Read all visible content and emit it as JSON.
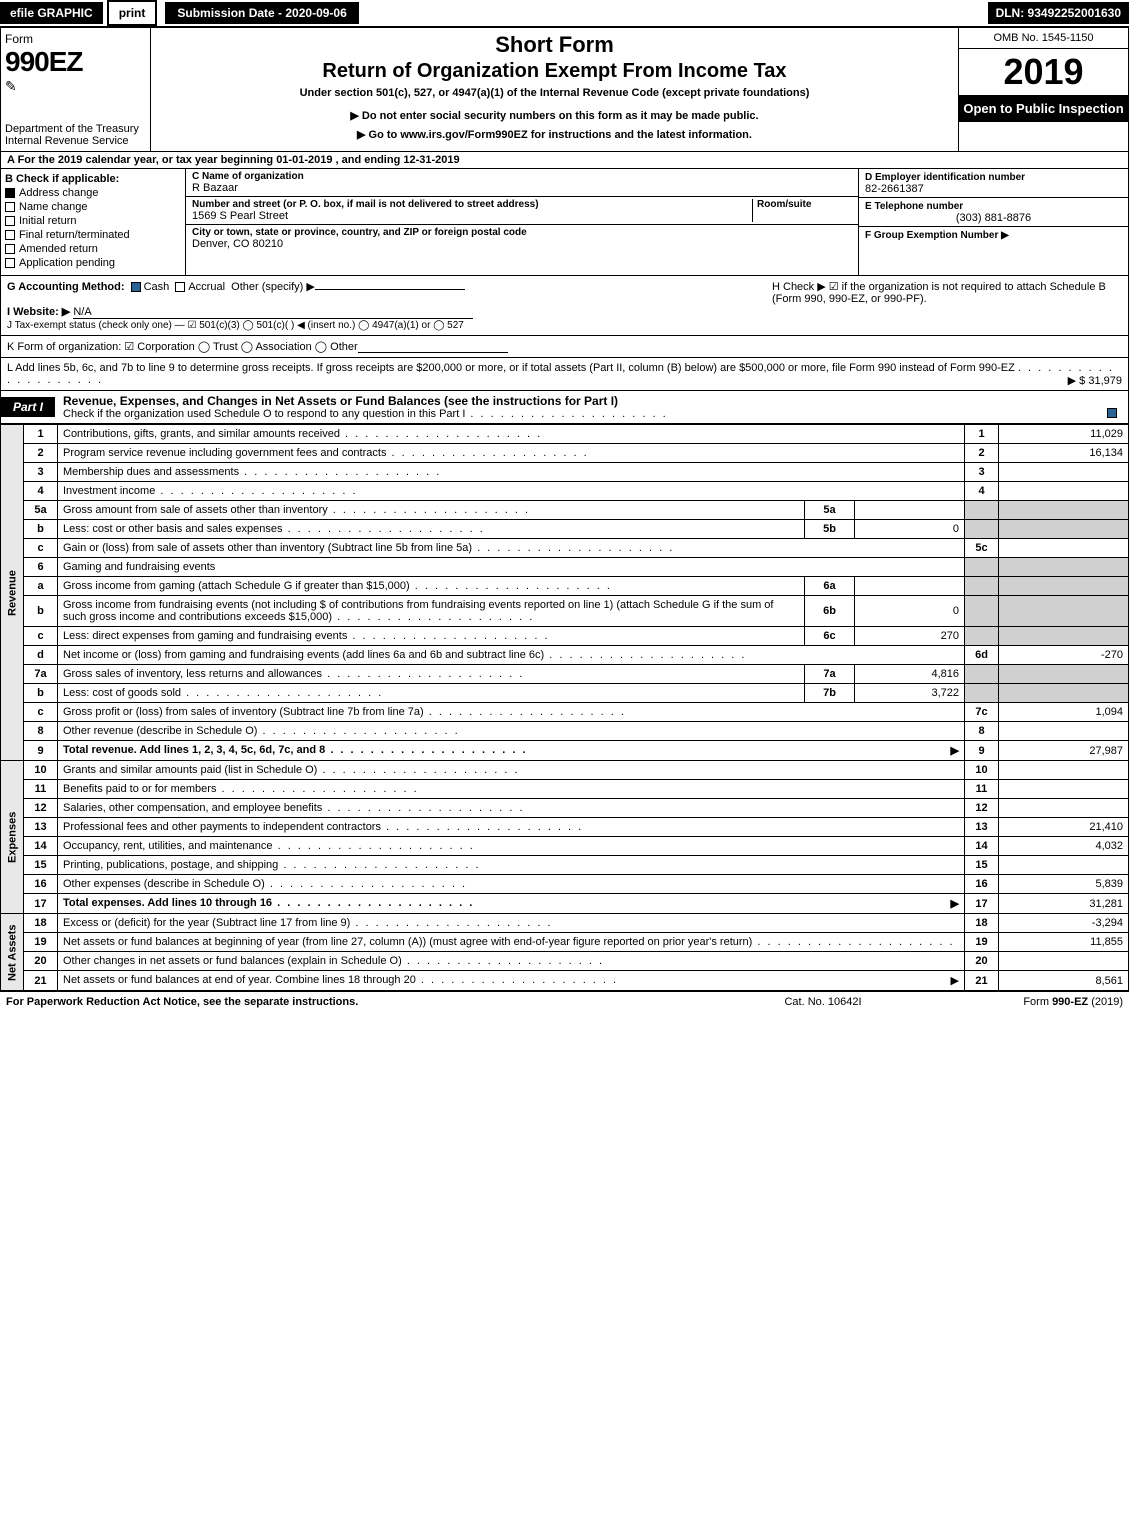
{
  "topbar": {
    "efile": "efile GRAPHIC",
    "print": "print",
    "subdate_label": "Submission Date - 2020-09-06",
    "dln": "DLN: 93492252001630"
  },
  "header": {
    "form_word": "Form",
    "form_number": "990EZ",
    "dept": "Department of the Treasury",
    "irs": "Internal Revenue Service",
    "title1": "Short Form",
    "title2": "Return of Organization Exempt From Income Tax",
    "sub": "Under section 501(c), 527, or 4947(a)(1) of the Internal Revenue Code (except private foundations)",
    "sub2": "▶ Do not enter social security numbers on this form as it may be made public.",
    "sub3": "▶ Go to www.irs.gov/Form990EZ for instructions and the latest information.",
    "omb": "OMB No. 1545-1150",
    "year": "2019",
    "open": "Open to Public Inspection"
  },
  "period": "A For the 2019 calendar year, or tax year beginning 01-01-2019 , and ending 12-31-2019",
  "boxB": {
    "label": "B Check if applicable:",
    "items": [
      {
        "label": "Address change",
        "checked": true
      },
      {
        "label": "Name change",
        "checked": false
      },
      {
        "label": "Initial return",
        "checked": false
      },
      {
        "label": "Final return/terminated",
        "checked": false
      },
      {
        "label": "Amended return",
        "checked": false
      },
      {
        "label": "Application pending",
        "checked": false
      }
    ]
  },
  "boxC": {
    "name_label": "C Name of organization",
    "name": "R Bazaar",
    "addr_label": "Number and street (or P. O. box, if mail is not delivered to street address)",
    "room_label": "Room/suite",
    "addr": "1569 S Pearl Street",
    "city_label": "City or town, state or province, country, and ZIP or foreign postal code",
    "city": "Denver, CO  80210"
  },
  "boxD": {
    "label": "D Employer identification number",
    "value": "82-2661387"
  },
  "boxE": {
    "label": "E Telephone number",
    "value": "(303) 881-8876"
  },
  "boxF": {
    "label": "F Group Exemption Number ▶",
    "value": ""
  },
  "lineG": {
    "label": "G Accounting Method:",
    "cash": "Cash",
    "accrual": "Accrual",
    "other": "Other (specify) ▶"
  },
  "lineH": {
    "text": "H Check ▶ ☑ if the organization is not required to attach Schedule B (Form 990, 990-EZ, or 990-PF)."
  },
  "lineI": {
    "label": "I Website: ▶",
    "value": "N/A"
  },
  "lineJ": {
    "label": "J Tax-exempt status (check only one) — ☑ 501(c)(3)  ◯ 501(c)( ) ◀ (insert no.)  ◯ 4947(a)(1) or  ◯ 527"
  },
  "lineK": {
    "label": "K Form of organization:  ☑ Corporation  ◯ Trust  ◯ Association  ◯ Other"
  },
  "lineL": {
    "text": "L Add lines 5b, 6c, and 7b to line 9 to determine gross receipts. If gross receipts are $200,000 or more, or if total assets (Part II, column (B) below) are $500,000 or more, file Form 990 instead of Form 990-EZ",
    "amount": "▶ $ 31,979"
  },
  "part1": {
    "label": "Part I",
    "title": "Revenue, Expenses, and Changes in Net Assets or Fund Balances (see the instructions for Part I)",
    "checknote": "Check if the organization used Schedule O to respond to any question in this Part I"
  },
  "sections": {
    "revenue": "Revenue",
    "expenses": "Expenses",
    "netassets": "Net Assets"
  },
  "rows": [
    {
      "n": "1",
      "desc": "Contributions, gifts, grants, and similar amounts received",
      "ref": "1",
      "amt": "11,029"
    },
    {
      "n": "2",
      "desc": "Program service revenue including government fees and contracts",
      "ref": "2",
      "amt": "16,134"
    },
    {
      "n": "3",
      "desc": "Membership dues and assessments",
      "ref": "3",
      "amt": ""
    },
    {
      "n": "4",
      "desc": "Investment income",
      "ref": "4",
      "amt": ""
    },
    {
      "n": "5a",
      "desc": "Gross amount from sale of assets other than inventory",
      "inner_ref": "5a",
      "inner_amt": ""
    },
    {
      "n": "b",
      "desc": "Less: cost or other basis and sales expenses",
      "inner_ref": "5b",
      "inner_amt": "0"
    },
    {
      "n": "c",
      "desc": "Gain or (loss) from sale of assets other than inventory (Subtract line 5b from line 5a)",
      "ref": "5c",
      "amt": ""
    },
    {
      "n": "6",
      "desc": "Gaming and fundraising events"
    },
    {
      "n": "a",
      "desc": "Gross income from gaming (attach Schedule G if greater than $15,000)",
      "inner_ref": "6a",
      "inner_amt": ""
    },
    {
      "n": "b",
      "desc": "Gross income from fundraising events (not including $                of contributions from fundraising events reported on line 1) (attach Schedule G if the sum of such gross income and contributions exceeds $15,000)",
      "inner_ref": "6b",
      "inner_amt": "0"
    },
    {
      "n": "c",
      "desc": "Less: direct expenses from gaming and fundraising events",
      "inner_ref": "6c",
      "inner_amt": "270"
    },
    {
      "n": "d",
      "desc": "Net income or (loss) from gaming and fundraising events (add lines 6a and 6b and subtract line 6c)",
      "ref": "6d",
      "amt": "-270"
    },
    {
      "n": "7a",
      "desc": "Gross sales of inventory, less returns and allowances",
      "inner_ref": "7a",
      "inner_amt": "4,816"
    },
    {
      "n": "b",
      "desc": "Less: cost of goods sold",
      "inner_ref": "7b",
      "inner_amt": "3,722"
    },
    {
      "n": "c",
      "desc": "Gross profit or (loss) from sales of inventory (Subtract line 7b from line 7a)",
      "ref": "7c",
      "amt": "1,094"
    },
    {
      "n": "8",
      "desc": "Other revenue (describe in Schedule O)",
      "ref": "8",
      "amt": ""
    },
    {
      "n": "9",
      "desc": "Total revenue. Add lines 1, 2, 3, 4, 5c, 6d, 7c, and 8",
      "ref": "9",
      "amt": "27,987",
      "bold": true,
      "arrow": true
    }
  ],
  "exp_rows": [
    {
      "n": "10",
      "desc": "Grants and similar amounts paid (list in Schedule O)",
      "ref": "10",
      "amt": ""
    },
    {
      "n": "11",
      "desc": "Benefits paid to or for members",
      "ref": "11",
      "amt": ""
    },
    {
      "n": "12",
      "desc": "Salaries, other compensation, and employee benefits",
      "ref": "12",
      "amt": ""
    },
    {
      "n": "13",
      "desc": "Professional fees and other payments to independent contractors",
      "ref": "13",
      "amt": "21,410"
    },
    {
      "n": "14",
      "desc": "Occupancy, rent, utilities, and maintenance",
      "ref": "14",
      "amt": "4,032"
    },
    {
      "n": "15",
      "desc": "Printing, publications, postage, and shipping",
      "ref": "15",
      "amt": ""
    },
    {
      "n": "16",
      "desc": "Other expenses (describe in Schedule O)",
      "ref": "16",
      "amt": "5,839"
    },
    {
      "n": "17",
      "desc": "Total expenses. Add lines 10 through 16",
      "ref": "17",
      "amt": "31,281",
      "bold": true,
      "arrow": true
    }
  ],
  "na_rows": [
    {
      "n": "18",
      "desc": "Excess or (deficit) for the year (Subtract line 17 from line 9)",
      "ref": "18",
      "amt": "-3,294"
    },
    {
      "n": "19",
      "desc": "Net assets or fund balances at beginning of year (from line 27, column (A)) (must agree with end-of-year figure reported on prior year's return)",
      "ref": "19",
      "amt": "11,855"
    },
    {
      "n": "20",
      "desc": "Other changes in net assets or fund balances (explain in Schedule O)",
      "ref": "20",
      "amt": ""
    },
    {
      "n": "21",
      "desc": "Net assets or fund balances at end of year. Combine lines 18 through 20",
      "ref": "21",
      "amt": "8,561",
      "arrow": true
    }
  ],
  "footer": {
    "left": "For Paperwork Reduction Act Notice, see the separate instructions.",
    "mid": "Cat. No. 10642I",
    "right": "Form 990-EZ (2019)"
  },
  "colors": {
    "black": "#000000",
    "white": "#ffffff",
    "gray": "#d0d0d0",
    "link": "#0000cc"
  }
}
